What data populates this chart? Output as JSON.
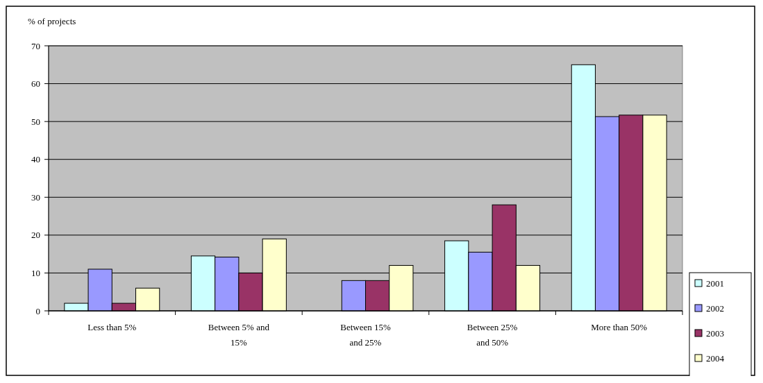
{
  "chart_data": {
    "type": "bar",
    "ylabel": "% of projects",
    "categories": [
      "Less than 5%",
      "Between 5% and 15%",
      "Between 15% and 25%",
      "Between 25% and 50%",
      "More than 50%"
    ],
    "series": [
      {
        "name": "2001",
        "color": "#ccffff",
        "values": [
          2,
          14.5,
          0,
          18.5,
          65
        ]
      },
      {
        "name": "2002",
        "color": "#9999ff",
        "values": [
          11,
          14.2,
          8,
          15.5,
          51.3
        ]
      },
      {
        "name": "2003",
        "color": "#993366",
        "values": [
          2,
          10,
          8,
          28,
          51.7
        ]
      },
      {
        "name": "2004",
        "color": "#ffffcc",
        "values": [
          6,
          19,
          12,
          12,
          51.7
        ]
      }
    ],
    "ylim": [
      0,
      70
    ],
    "yticks": [
      0,
      10,
      20,
      30,
      40,
      50,
      60,
      70
    ],
    "grid": "y",
    "legend": "bottom right"
  }
}
